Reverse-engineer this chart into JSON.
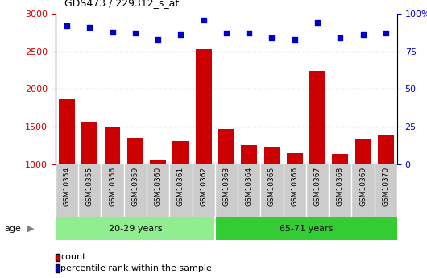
{
  "title": "GDS473 / 229312_s_at",
  "categories": [
    "GSM10354",
    "GSM10355",
    "GSM10356",
    "GSM10359",
    "GSM10360",
    "GSM10361",
    "GSM10362",
    "GSM10363",
    "GSM10364",
    "GSM10365",
    "GSM10366",
    "GSM10367",
    "GSM10368",
    "GSM10369",
    "GSM10370"
  ],
  "counts": [
    1860,
    1550,
    1500,
    1350,
    1060,
    1310,
    2530,
    1470,
    1250,
    1230,
    1150,
    2240,
    1140,
    1330,
    1390
  ],
  "percentile_ranks": [
    92,
    91,
    88,
    87,
    83,
    86,
    96,
    87,
    87,
    84,
    83,
    94,
    84,
    86,
    87
  ],
  "group1_label": "20-29 years",
  "group2_label": "65-71 years",
  "group1_count": 7,
  "group2_count": 8,
  "bar_color": "#cc0000",
  "dot_color": "#0000cc",
  "group1_bg": "#90ee90",
  "group2_bg": "#33cc33",
  "tick_label_bg": "#cccccc",
  "plot_bg": "#ffffff",
  "ylim_left": [
    1000,
    3000
  ],
  "ylim_right": [
    0,
    100
  ],
  "yticks_left": [
    1000,
    1500,
    2000,
    2500,
    3000
  ],
  "yticks_right": [
    0,
    25,
    50,
    75,
    100
  ],
  "ylabel_right_ticks": [
    "0",
    "25",
    "50",
    "75",
    "100%"
  ],
  "grid_lines": [
    1500,
    2000,
    2500
  ],
  "legend_count_label": "count",
  "legend_pct_label": "percentile rank within the sample",
  "age_label": "age"
}
